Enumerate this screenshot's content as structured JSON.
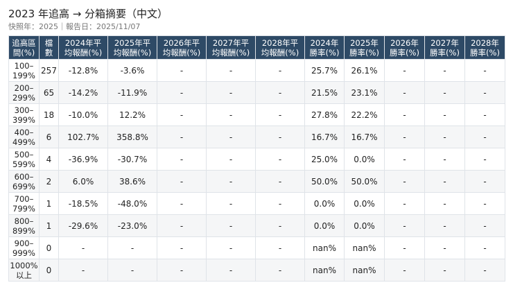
{
  "title": "2023 年追高 → 分箱摘要（中文）",
  "subtitle": "快照年：2025｜報告日：2025/11/07",
  "table": {
    "headers": [
      [
        "追高區",
        "間(%)"
      ],
      [
        "檔",
        "數"
      ],
      [
        "2024年平",
        "均報酬(%)"
      ],
      [
        "2025年平",
        "均報酬(%)"
      ],
      [
        "2026年平",
        "均報酬(%)"
      ],
      [
        "2027年平",
        "均報酬(%)"
      ],
      [
        "2028年平",
        "均報酬(%)"
      ],
      [
        "2024年",
        "勝率(%)"
      ],
      [
        "2025年",
        "勝率(%)"
      ],
      [
        "2026年",
        "勝率(%)"
      ],
      [
        "2027年",
        "勝率(%)"
      ],
      [
        "2028年",
        "勝率(%)"
      ]
    ],
    "rows": [
      [
        [
          "100–",
          "199%"
        ],
        "257",
        "-12.8%",
        "-3.6%",
        "-",
        "-",
        "-",
        "25.7%",
        "26.1%",
        "-",
        "-",
        "-"
      ],
      [
        [
          "200–",
          "299%"
        ],
        "65",
        "-14.2%",
        "-11.9%",
        "-",
        "-",
        "-",
        "21.5%",
        "23.1%",
        "-",
        "-",
        "-"
      ],
      [
        [
          "300–",
          "399%"
        ],
        "18",
        "-10.0%",
        "12.2%",
        "-",
        "-",
        "-",
        "27.8%",
        "22.2%",
        "-",
        "-",
        "-"
      ],
      [
        [
          "400–",
          "499%"
        ],
        "6",
        "102.7%",
        "358.8%",
        "-",
        "-",
        "-",
        "16.7%",
        "16.7%",
        "-",
        "-",
        "-"
      ],
      [
        [
          "500–",
          "599%"
        ],
        "4",
        "-36.9%",
        "-30.7%",
        "-",
        "-",
        "-",
        "25.0%",
        "0.0%",
        "-",
        "-",
        "-"
      ],
      [
        [
          "600–",
          "699%"
        ],
        "2",
        "6.0%",
        "38.6%",
        "-",
        "-",
        "-",
        "50.0%",
        "50.0%",
        "-",
        "-",
        "-"
      ],
      [
        [
          "700–",
          "799%"
        ],
        "1",
        "-18.5%",
        "-48.0%",
        "-",
        "-",
        "-",
        "0.0%",
        "0.0%",
        "-",
        "-",
        "-"
      ],
      [
        [
          "800–",
          "899%"
        ],
        "1",
        "-29.6%",
        "-23.0%",
        "-",
        "-",
        "-",
        "0.0%",
        "0.0%",
        "-",
        "-",
        "-"
      ],
      [
        [
          "900–",
          "999%"
        ],
        "0",
        "-",
        "-",
        "-",
        "-",
        "-",
        "nan%",
        "nan%",
        "-",
        "-",
        "-"
      ],
      [
        [
          "1000%",
          "以上"
        ],
        "0",
        "-",
        "-",
        "-",
        "-",
        "-",
        "nan%",
        "nan%",
        "-",
        "-",
        "-"
      ]
    ]
  },
  "colors": {
    "header_bg": "#2e4a66",
    "header_text": "#ffffff",
    "stripe": "#f5f6f7",
    "grid": "#dfe3e8"
  }
}
